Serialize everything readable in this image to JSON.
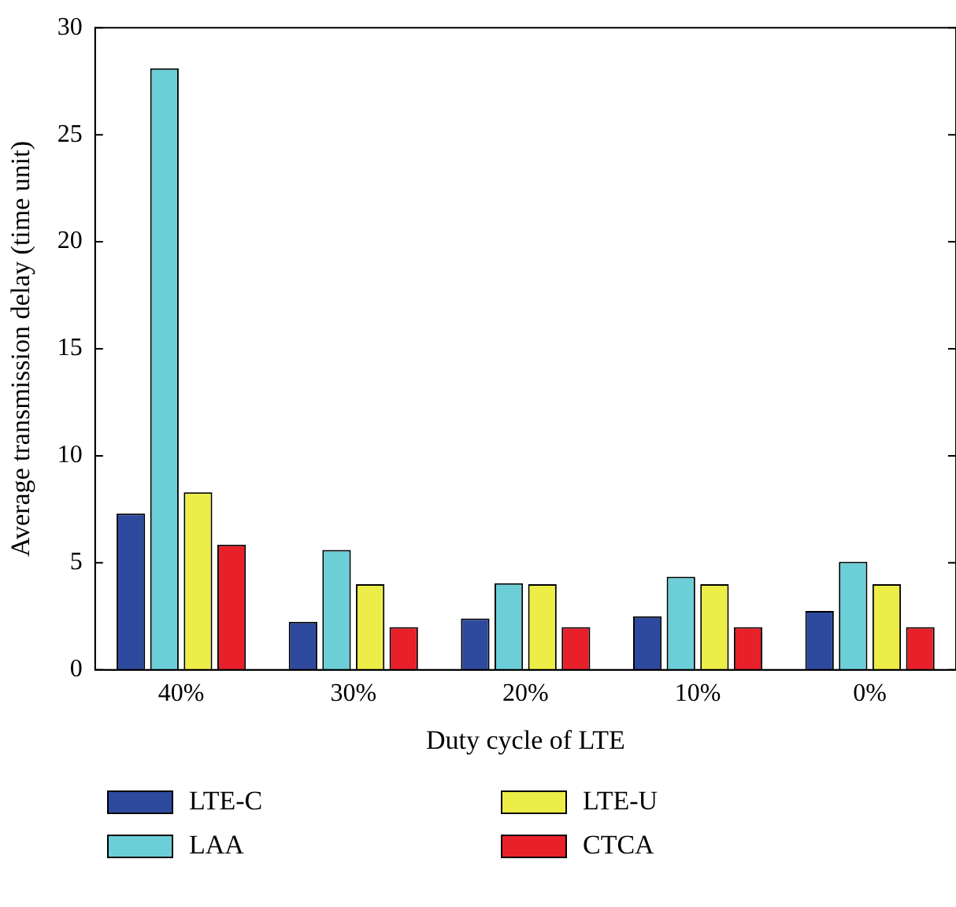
{
  "chart_data": {
    "type": "bar",
    "xlabel": "Duty cycle of LTE",
    "ylabel": "Average transmission delay (time unit)",
    "categories": [
      "40%",
      "30%",
      "20%",
      "10%",
      "0%"
    ],
    "series": [
      {
        "name": "LTE-C",
        "color": "#2e4a9e",
        "values": [
          7.3,
          2.25,
          2.4,
          2.5,
          2.75
        ]
      },
      {
        "name": "LAA",
        "color": "#6ccfd8",
        "values": [
          28.1,
          5.6,
          4.05,
          4.35,
          5.05
        ]
      },
      {
        "name": "LTE-U",
        "color": "#eded48",
        "values": [
          8.3,
          4.0,
          4.0,
          4.0,
          4.0
        ]
      },
      {
        "name": "CTCA",
        "color": "#e8202a",
        "values": [
          5.85,
          2.0,
          2.0,
          2.0,
          2.0
        ]
      }
    ],
    "ylim": [
      0,
      30
    ],
    "yticks": [
      0,
      5,
      10,
      15,
      20,
      25,
      30
    ],
    "grid": false,
    "legend": "bottom"
  }
}
